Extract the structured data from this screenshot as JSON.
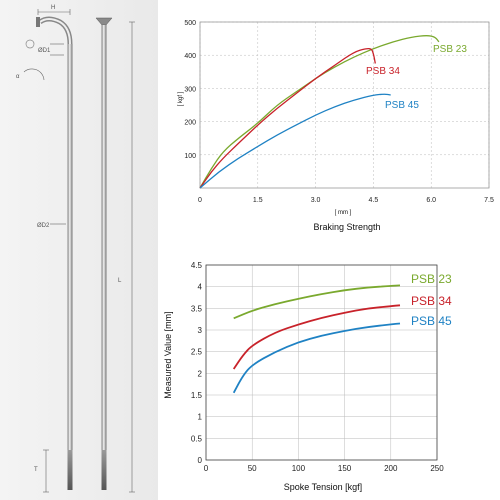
{
  "spoke_diagram": {
    "labels": {
      "H": "H",
      "D1": "ØD1",
      "alpha": "α",
      "D2": "ØD2",
      "L": "L",
      "T": "T"
    }
  },
  "colors": {
    "psb23": "#7aa92e",
    "psb34": "#c8222a",
    "psb45": "#1f82c4",
    "grid": "#bbbbbb"
  },
  "chart_data": [
    {
      "type": "line",
      "title": "Braking Strength",
      "xlabel": "[ mm ]",
      "ylabel": "[ kgf ]",
      "xlim": [
        0,
        7.5
      ],
      "ylim": [
        0,
        500
      ],
      "xticks": [
        "0",
        "1.5",
        "3.0",
        "4.5",
        "6.0",
        "7.5"
      ],
      "yticks": [
        "100",
        "200",
        "300",
        "400",
        "500"
      ],
      "grid": true,
      "series": [
        {
          "name": "PSB 23",
          "color_key": "psb23",
          "x": [
            0,
            0.3,
            0.6,
            1.0,
            1.5,
            2.0,
            2.5,
            3.0,
            3.5,
            4.0,
            4.5,
            5.0,
            5.5,
            5.9,
            6.1,
            6.2
          ],
          "y": [
            0,
            60,
            110,
            150,
            195,
            250,
            290,
            330,
            365,
            395,
            420,
            440,
            455,
            460,
            455,
            440
          ]
        },
        {
          "name": "PSB 34",
          "color_key": "psb34",
          "x": [
            0,
            0.3,
            0.6,
            1.0,
            1.5,
            2.0,
            2.5,
            3.0,
            3.5,
            4.0,
            4.3,
            4.45,
            4.5,
            4.55
          ],
          "y": [
            0,
            50,
            90,
            135,
            190,
            240,
            285,
            330,
            370,
            410,
            420,
            420,
            405,
            375
          ]
        },
        {
          "name": "PSB 45",
          "color_key": "psb45",
          "x": [
            0,
            0.5,
            1.0,
            1.5,
            2.0,
            2.5,
            3.0,
            3.5,
            4.0,
            4.5,
            4.8,
            4.95
          ],
          "y": [
            0,
            50,
            90,
            125,
            160,
            190,
            220,
            245,
            265,
            280,
            283,
            280
          ]
        }
      ]
    },
    {
      "type": "line",
      "title": "",
      "xlabel": "Spoke Tension [kgf]",
      "ylabel": "Measured Value [mm]",
      "xlim": [
        0,
        250
      ],
      "ylim": [
        0,
        4.5
      ],
      "xticks": [
        "0",
        "50",
        "100",
        "150",
        "200",
        "250"
      ],
      "yticks": [
        "0",
        "0.5",
        "1",
        "1.5",
        "2",
        "2.5",
        "3",
        "3.5",
        "4",
        "4.5"
      ],
      "grid": true,
      "series": [
        {
          "name": "PSB 23",
          "color_key": "psb23",
          "x": [
            30,
            50,
            75,
            100,
            125,
            150,
            175,
            200,
            210
          ],
          "y": [
            3.27,
            3.45,
            3.6,
            3.72,
            3.83,
            3.92,
            3.98,
            4.02,
            4.03
          ]
        },
        {
          "name": "PSB 34",
          "color_key": "psb34",
          "x": [
            30,
            40,
            50,
            75,
            100,
            125,
            150,
            175,
            200,
            210
          ],
          "y": [
            2.1,
            2.42,
            2.65,
            2.95,
            3.13,
            3.28,
            3.4,
            3.5,
            3.55,
            3.57
          ]
        },
        {
          "name": "PSB 45",
          "color_key": "psb45",
          "x": [
            30,
            40,
            50,
            75,
            100,
            125,
            150,
            175,
            200,
            210
          ],
          "y": [
            1.55,
            1.95,
            2.2,
            2.5,
            2.72,
            2.87,
            2.98,
            3.07,
            3.13,
            3.15
          ]
        }
      ]
    }
  ]
}
